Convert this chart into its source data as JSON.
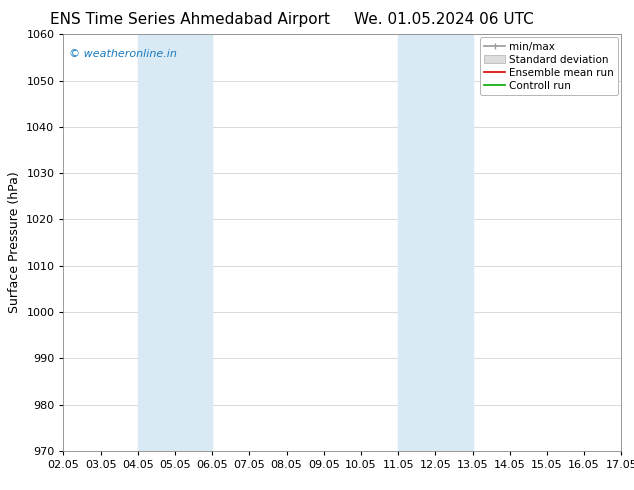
{
  "title_left": "ENS Time Series Ahmedabad Airport",
  "title_right": "We. 01.05.2024 06 UTC",
  "ylabel": "Surface Pressure (hPa)",
  "ylim": [
    970,
    1060
  ],
  "yticks": [
    970,
    980,
    990,
    1000,
    1010,
    1020,
    1030,
    1040,
    1050,
    1060
  ],
  "xtick_labels": [
    "02.05",
    "03.05",
    "04.05",
    "05.05",
    "06.05",
    "07.05",
    "08.05",
    "09.05",
    "10.05",
    "11.05",
    "12.05",
    "13.05",
    "14.05",
    "15.05",
    "16.05",
    "17.05"
  ],
  "shaded_regions": [
    {
      "xstart": 2,
      "xend": 4
    },
    {
      "xstart": 9,
      "xend": 11
    }
  ],
  "shaded_color": "#daeaf5",
  "watermark": "© weatheronline.in",
  "watermark_color": "#1a7abf",
  "legend_entries": [
    {
      "label": "min/max",
      "color": "#aaaaaa",
      "style": "line"
    },
    {
      "label": "Standard deviation",
      "color": "#cccccc",
      "style": "fill"
    },
    {
      "label": "Ensemble mean run",
      "color": "#dd0000",
      "style": "line"
    },
    {
      "label": "Controll run",
      "color": "#00aa00",
      "style": "line"
    }
  ],
  "background_color": "#ffffff",
  "grid_color": "#cccccc",
  "title_fontsize": 11,
  "axis_label_fontsize": 9,
  "tick_fontsize": 8,
  "legend_fontsize": 7.5
}
